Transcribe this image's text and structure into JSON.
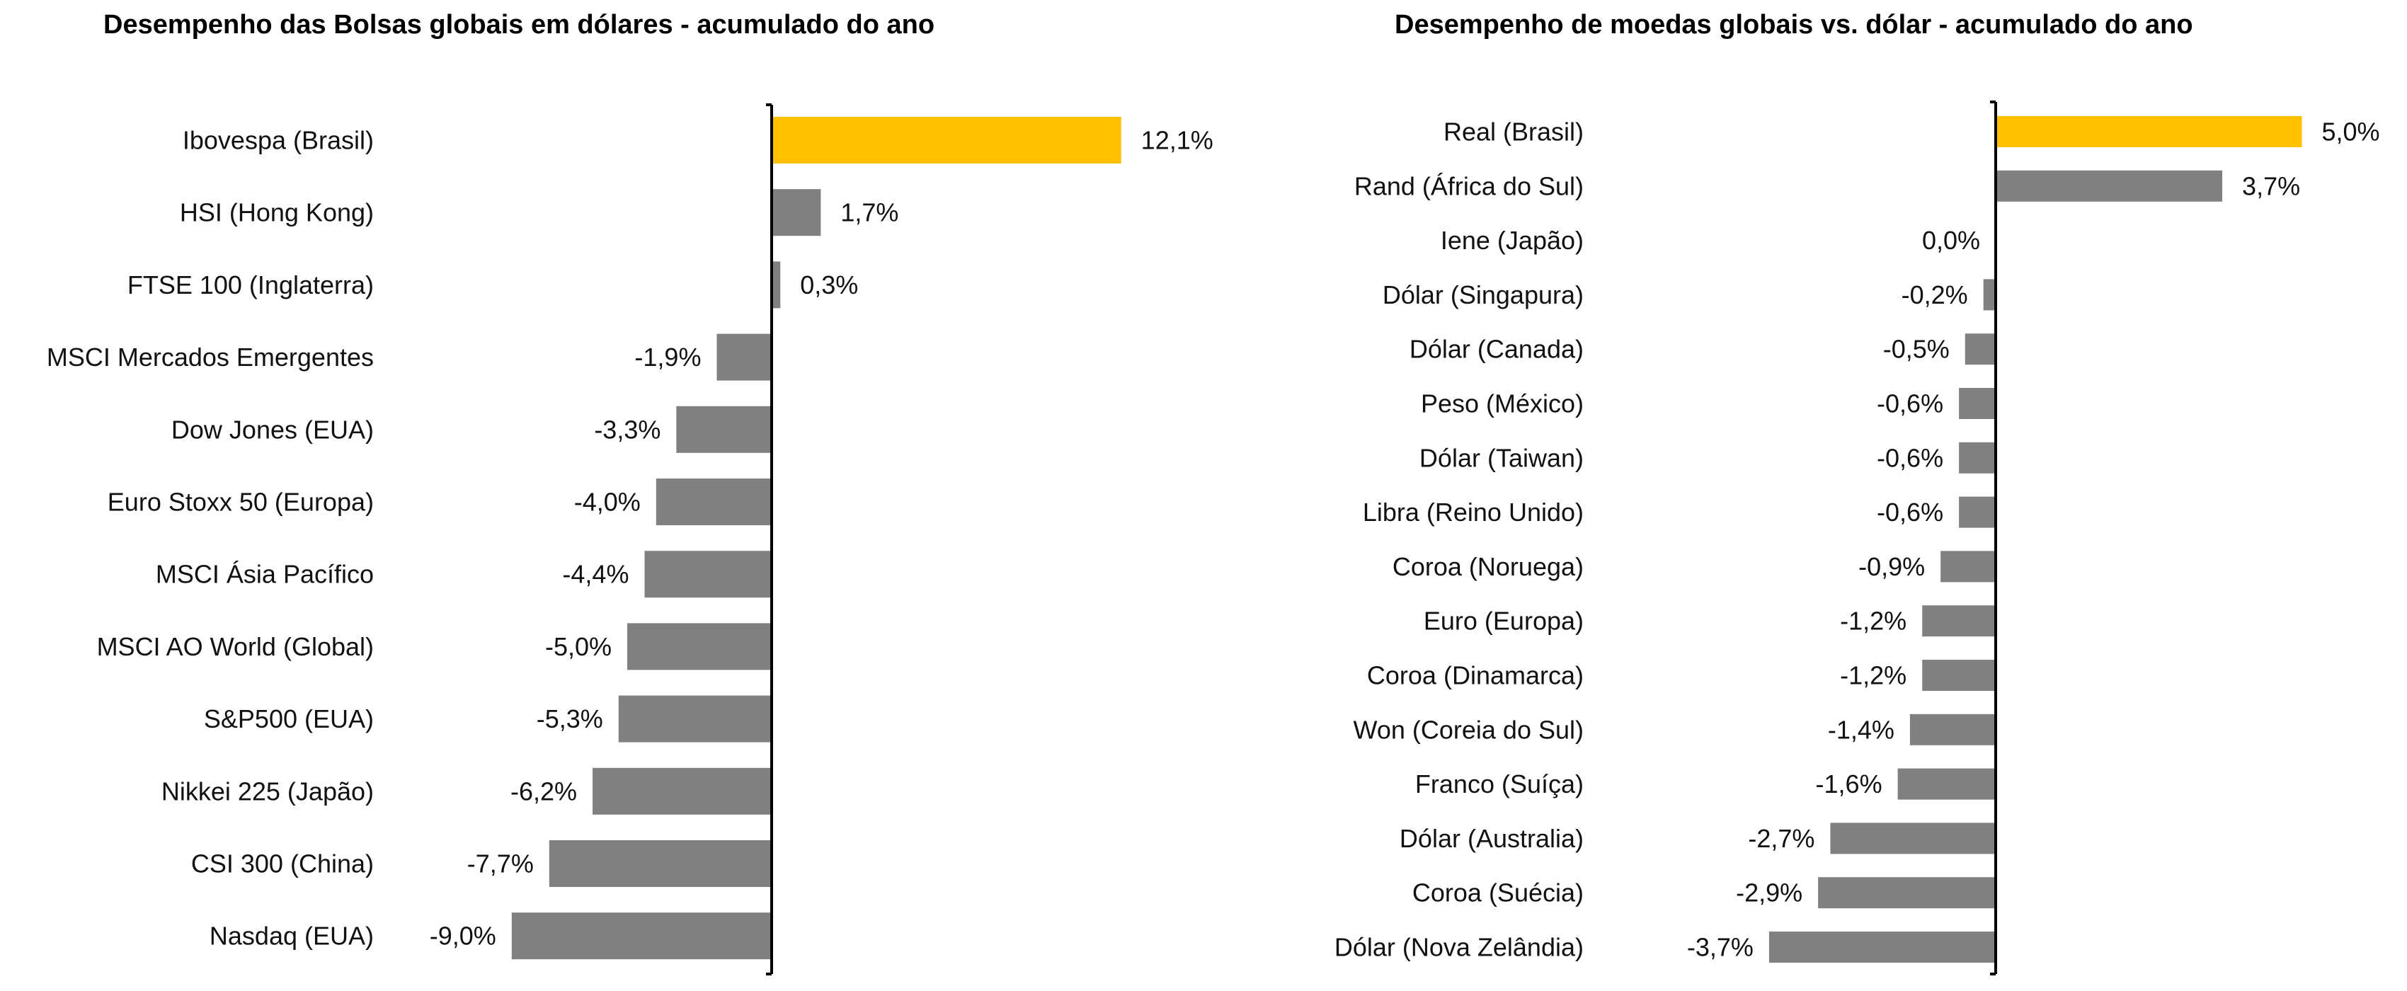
{
  "chart_data": [
    {
      "type": "bar",
      "orientation": "horizontal",
      "title": "Desempenho das Bolsas globais em dólares - acumulado do ano",
      "xlabel": "",
      "ylabel": "",
      "unit": "%",
      "grid": false,
      "legend": "none",
      "xlim": [
        -9.0,
        12.1
      ],
      "categories": [
        "Ibovespa (Brasil)",
        "HSI (Hong Kong)",
        "FTSE 100 (Inglaterra)",
        "MSCI Mercados Emergentes",
        "Dow Jones (EUA)",
        "Euro Stoxx 50 (Europa)",
        "MSCI Ásia Pacífico",
        "MSCI AO World (Global)",
        "S&P500 (EUA)",
        "Nikkei 225 (Japão)",
        "CSI 300 (China)",
        "Nasdaq (EUA)"
      ],
      "values": [
        12.1,
        1.7,
        0.3,
        -1.9,
        -3.3,
        -4.0,
        -4.4,
        -5.0,
        -5.3,
        -6.2,
        -7.7,
        -9.0
      ],
      "value_labels": [
        "12,1%",
        "1,7%",
        "0,3%",
        "-1,9%",
        "-3,3%",
        "-4,0%",
        "-4,4%",
        "-5,0%",
        "-5,3%",
        "-6,2%",
        "-7,7%",
        "-9,0%"
      ],
      "highlight_index": 0,
      "colors": {
        "highlight": "#FFC000",
        "bar": "#808080",
        "axis": "#000000"
      }
    },
    {
      "type": "bar",
      "orientation": "horizontal",
      "title": "Desempenho de moedas globais vs. dólar - acumulado do ano",
      "xlabel": "",
      "ylabel": "",
      "unit": "%",
      "grid": false,
      "legend": "none",
      "xlim": [
        -3.7,
        5.0
      ],
      "categories": [
        "Real (Brasil)",
        "Rand (África do Sul)",
        "Iene (Japão)",
        "Dólar (Singapura)",
        "Dólar (Canada)",
        "Peso (México)",
        "Dólar (Taiwan)",
        "Libra (Reino Unido)",
        "Coroa (Noruega)",
        "Euro (Europa)",
        "Coroa (Dinamarca)",
        "Won (Coreia do Sul)",
        "Franco (Suíça)",
        "Dólar (Australia)",
        "Coroa (Suécia)",
        "Dólar (Nova Zelândia)"
      ],
      "values": [
        5.0,
        3.7,
        0.0,
        -0.2,
        -0.5,
        -0.6,
        -0.6,
        -0.6,
        -0.9,
        -1.2,
        -1.2,
        -1.4,
        -1.6,
        -2.7,
        -2.9,
        -3.7
      ],
      "value_labels": [
        "5,0%",
        "3,7%",
        "0,0%",
        "-0,2%",
        "-0,5%",
        "-0,6%",
        "-0,6%",
        "-0,6%",
        "-0,9%",
        "-1,2%",
        "-1,2%",
        "-1,4%",
        "-1,6%",
        "-2,7%",
        "-2,9%",
        "-3,7%"
      ],
      "highlight_index": 0,
      "colors": {
        "highlight": "#FFC000",
        "bar": "#808080",
        "axis": "#000000"
      }
    }
  ]
}
